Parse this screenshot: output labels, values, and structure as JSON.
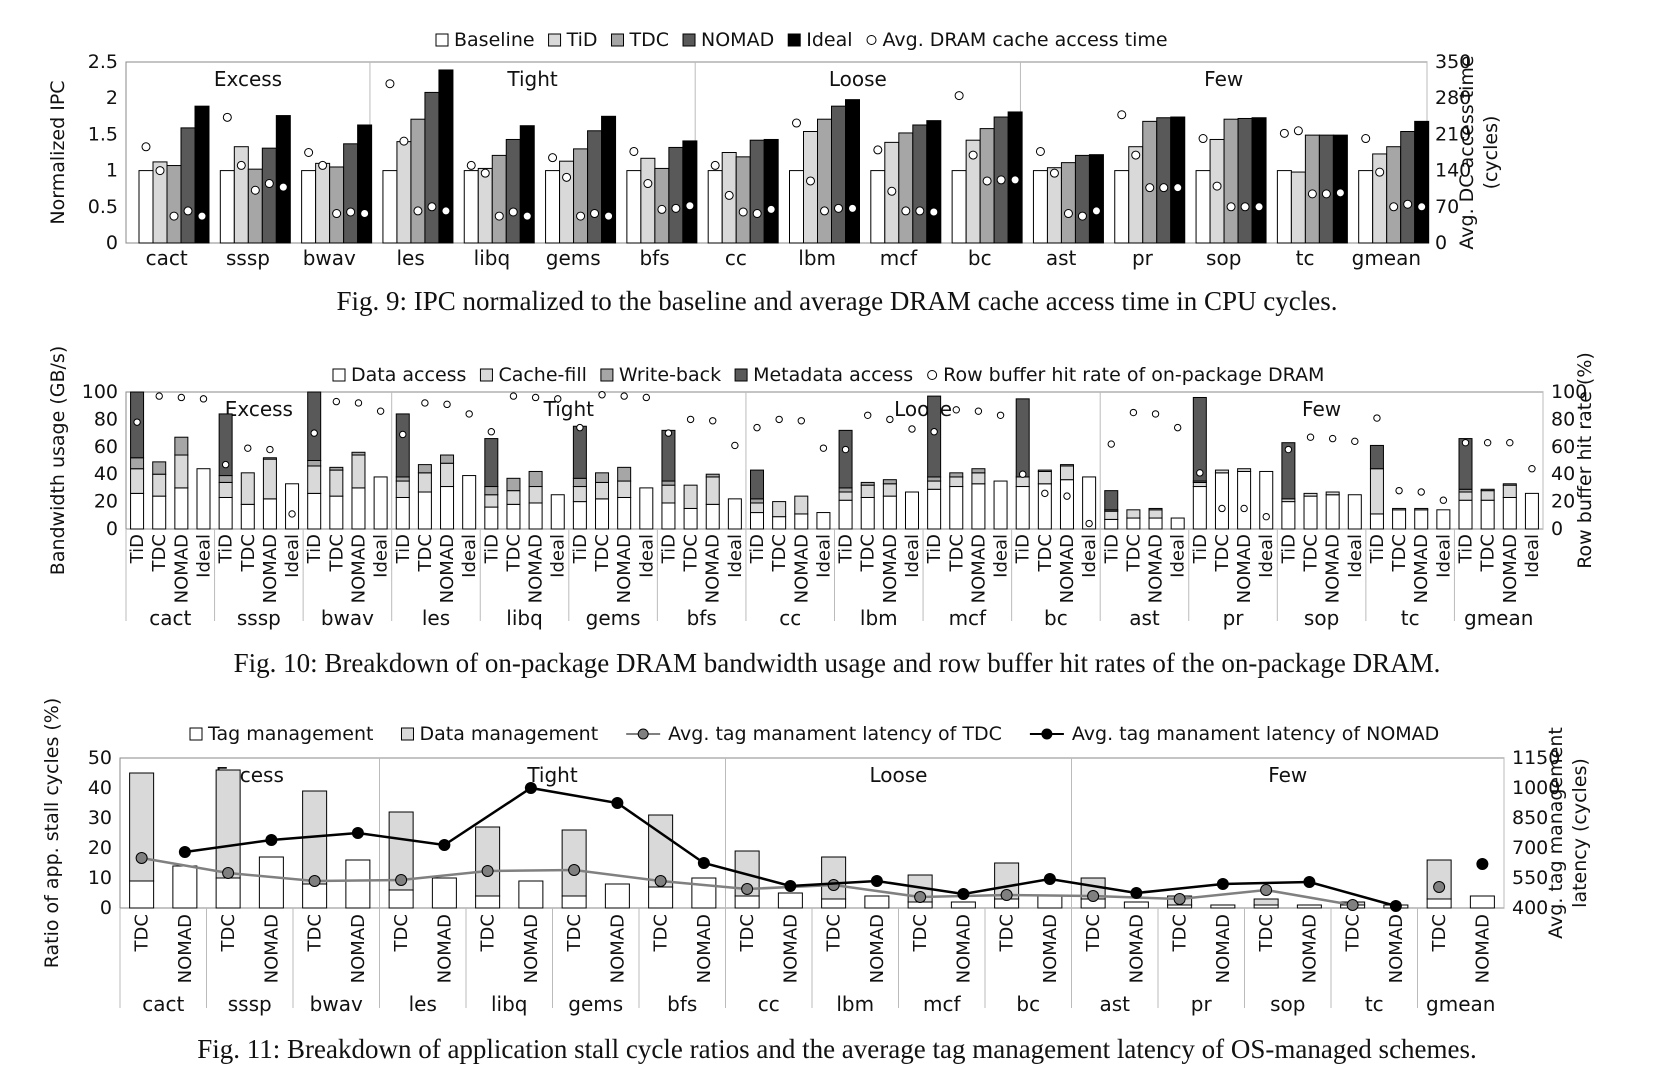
{
  "chart_data": [
    {
      "type": "bar",
      "caption": "Fig. 9: IPC normalized to the baseline and average DRAM cache access time in CPU cycles.",
      "ylabel": "Normalized IPC",
      "y2label_lines": [
        "Avg. DC access time",
        "(cycles)"
      ],
      "ylim": [
        0,
        2.5
      ],
      "yticks": [
        "0",
        "0.5",
        "1",
        "1.5",
        "2",
        "2.5"
      ],
      "y2lim": [
        0,
        350
      ],
      "y2ticks": [
        "0",
        "70",
        "140",
        "210",
        "280",
        "350"
      ],
      "groups": [
        {
          "name": "Excess",
          "count": 3
        },
        {
          "name": "Tight",
          "count": 4
        },
        {
          "name": "Loose",
          "count": 4
        },
        {
          "name": "Few",
          "count": 5
        }
      ],
      "categories": [
        "cact",
        "sssp",
        "bwav",
        "les",
        "libq",
        "gems",
        "bfs",
        "cc",
        "lbm",
        "mcf",
        "bc",
        "ast",
        "pr",
        "sop",
        "tc",
        "gmean"
      ],
      "legend": [
        "Baseline",
        "TiD",
        "TDC",
        "NOMAD",
        "Ideal",
        "Avg. DRAM cache access time"
      ],
      "series_colors": [
        "#ffffff",
        "#d9d9d9",
        "#a6a6a6",
        "#595959",
        "#000000"
      ],
      "series": [
        {
          "name": "Baseline",
          "values": [
            1.0,
            1.0,
            1.0,
            1.0,
            1.0,
            1.0,
            1.0,
            1.0,
            1.0,
            1.0,
            1.0,
            1.0,
            1.0,
            1.0,
            1.0,
            1.0
          ]
        },
        {
          "name": "TiD",
          "values": [
            1.12,
            1.33,
            1.1,
            1.4,
            1.03,
            1.13,
            1.17,
            1.25,
            1.54,
            1.39,
            1.42,
            1.04,
            1.33,
            1.43,
            0.98,
            1.23
          ]
        },
        {
          "name": "TDC",
          "values": [
            1.07,
            1.02,
            1.05,
            1.71,
            1.21,
            1.3,
            1.03,
            1.19,
            1.71,
            1.52,
            1.58,
            1.11,
            1.68,
            1.71,
            1.49,
            1.33
          ]
        },
        {
          "name": "NOMAD",
          "values": [
            1.59,
            1.31,
            1.37,
            2.08,
            1.43,
            1.55,
            1.32,
            1.42,
            1.89,
            1.63,
            1.74,
            1.21,
            1.73,
            1.72,
            1.49,
            1.54
          ]
        },
        {
          "name": "Ideal",
          "values": [
            1.89,
            1.76,
            1.63,
            2.39,
            1.62,
            1.75,
            1.41,
            1.43,
            1.98,
            1.69,
            1.81,
            1.22,
            1.74,
            1.73,
            1.49,
            1.68
          ]
        }
      ],
      "line_series": {
        "name": "Avg. DRAM cache access time",
        "values": [
          [
            186,
            140,
            52,
            62,
            52
          ],
          [
            243,
            150,
            102,
            115,
            108
          ],
          [
            175,
            150,
            57,
            60,
            57
          ],
          [
            308,
            197,
            62,
            70,
            62
          ],
          [
            150,
            135,
            52,
            60,
            52
          ],
          [
            165,
            127,
            52,
            57,
            52
          ],
          [
            177,
            115,
            65,
            67,
            72
          ],
          [
            150,
            92,
            60,
            57,
            65
          ],
          [
            232,
            120,
            62,
            67,
            67
          ],
          [
            180,
            100,
            62,
            62,
            60
          ],
          [
            285,
            170,
            120,
            122,
            122
          ],
          [
            177,
            135,
            57,
            52,
            62
          ],
          [
            248,
            170,
            107,
            107,
            107
          ],
          [
            202,
            110,
            70,
            70,
            70
          ],
          [
            212,
            217,
            95,
            95,
            97
          ],
          [
            202,
            137,
            70,
            75,
            70
          ]
        ]
      }
    },
    {
      "type": "bar",
      "caption": "Fig. 10: Breakdown of on-package DRAM bandwidth usage and row buffer hit rates of the on-package DRAM.",
      "ylabel": "Bandwidth usage (GB/s)",
      "y2label_lines": [
        "Row buffer hit rate (%)"
      ],
      "ylim": [
        0,
        100
      ],
      "yticks": [
        "0",
        "20",
        "40",
        "60",
        "80",
        "100"
      ],
      "y2lim": [
        0,
        100
      ],
      "y2ticks": [
        "0",
        "20",
        "40",
        "60",
        "80",
        "100"
      ],
      "groups": [
        {
          "name": "Excess",
          "count": 3
        },
        {
          "name": "Tight",
          "count": 4
        },
        {
          "name": "Loose",
          "count": 4
        },
        {
          "name": "Few",
          "count": 5
        }
      ],
      "categories": [
        "cact",
        "sssp",
        "bwav",
        "les",
        "libq",
        "gems",
        "bfs",
        "cc",
        "lbm",
        "mcf",
        "bc",
        "ast",
        "pr",
        "sop",
        "tc",
        "gmean"
      ],
      "sub_categories": [
        "TiD",
        "TDC",
        "NOMAD",
        "Ideal"
      ],
      "legend": [
        "Data access",
        "Cache-fill",
        "Write-back",
        "Metadata access",
        "Row buffer hit rate of on-package DRAM"
      ],
      "series_colors": [
        "#ffffff",
        "#d9d9d9",
        "#a6a6a6",
        "#595959"
      ],
      "stacks": [
        [
          [
            26,
            18,
            8,
            48
          ],
          [
            24,
            16,
            9,
            0
          ],
          [
            30,
            24,
            13,
            0
          ],
          [
            44,
            0,
            0,
            0
          ]
        ],
        [
          [
            23,
            11,
            5,
            45
          ],
          [
            18,
            23,
            0,
            0
          ],
          [
            22,
            29,
            1,
            0
          ],
          [
            33,
            0,
            0,
            0
          ]
        ],
        [
          [
            26,
            20,
            4,
            50
          ],
          [
            24,
            19,
            2,
            0
          ],
          [
            30,
            24,
            2,
            0
          ],
          [
            38,
            0,
            0,
            0
          ]
        ],
        [
          [
            23,
            12,
            3,
            46
          ],
          [
            27,
            14,
            6,
            0
          ],
          [
            31,
            17,
            6,
            0
          ],
          [
            39,
            0,
            0,
            0
          ]
        ],
        [
          [
            16,
            9,
            6,
            35
          ],
          [
            18,
            10,
            9,
            0
          ],
          [
            19,
            12,
            11,
            0
          ],
          [
            25,
            0,
            0,
            0
          ]
        ],
        [
          [
            20,
            11,
            6,
            38
          ],
          [
            22,
            12,
            7,
            0
          ],
          [
            23,
            12,
            10,
            0
          ],
          [
            30,
            0,
            0,
            0
          ]
        ],
        [
          [
            19,
            13,
            3,
            37
          ],
          [
            15,
            17,
            0,
            0
          ],
          [
            18,
            20,
            2,
            0
          ],
          [
            22,
            0,
            0,
            0
          ]
        ],
        [
          [
            12,
            7,
            3,
            21
          ],
          [
            9,
            11,
            0,
            0
          ],
          [
            11,
            13,
            0,
            0
          ],
          [
            12,
            0,
            0,
            0
          ]
        ],
        [
          [
            21,
            6,
            3,
            42
          ],
          [
            23,
            9,
            2,
            0
          ],
          [
            24,
            9,
            3,
            0
          ],
          [
            27,
            0,
            0,
            0
          ]
        ],
        [
          [
            29,
            6,
            3,
            59
          ],
          [
            31,
            7,
            3,
            0
          ],
          [
            33,
            8,
            3,
            0
          ],
          [
            35,
            0,
            0,
            0
          ]
        ],
        [
          [
            31,
            7,
            0,
            57
          ],
          [
            33,
            9,
            1,
            0
          ],
          [
            36,
            10,
            1,
            0
          ],
          [
            38,
            0,
            0,
            0
          ]
        ],
        [
          [
            7,
            6,
            1,
            14
          ],
          [
            8,
            6,
            0,
            0
          ],
          [
            8,
            6,
            1,
            0
          ],
          [
            8,
            0,
            0,
            0
          ]
        ],
        [
          [
            31,
            3,
            1,
            61
          ],
          [
            41,
            2,
            0,
            0
          ],
          [
            42,
            2,
            0,
            0
          ],
          [
            42,
            0,
            0,
            0
          ]
        ],
        [
          [
            20,
            2,
            0,
            41
          ],
          [
            24,
            2,
            0,
            0
          ],
          [
            25,
            2,
            0,
            0
          ],
          [
            25,
            0,
            0,
            0
          ]
        ],
        [
          [
            11,
            33,
            0,
            17
          ],
          [
            14,
            1,
            0,
            0
          ],
          [
            14,
            1,
            0,
            0
          ],
          [
            14,
            0,
            0,
            0
          ]
        ],
        [
          [
            21,
            6,
            2,
            37
          ],
          [
            21,
            7,
            1,
            0
          ],
          [
            23,
            9,
            1,
            0
          ],
          [
            26,
            0,
            0,
            0
          ]
        ]
      ],
      "line_series": {
        "name": "Row buffer hit rate of on-package DRAM",
        "values": [
          [
            78,
            97,
            96,
            95
          ],
          [
            47,
            59,
            58,
            11
          ],
          [
            70,
            93,
            92,
            86
          ],
          [
            69,
            92,
            91,
            84
          ],
          [
            71,
            97,
            96,
            95
          ],
          [
            74,
            98,
            97,
            96
          ],
          [
            70,
            80,
            79,
            61
          ],
          [
            74,
            80,
            79,
            59
          ],
          [
            58,
            83,
            80,
            73
          ],
          [
            71,
            87,
            86,
            83
          ],
          [
            40,
            26,
            24,
            4
          ],
          [
            62,
            85,
            84,
            74
          ],
          [
            41,
            15,
            15,
            9
          ],
          [
            58,
            67,
            66,
            64
          ],
          [
            81,
            28,
            27,
            21
          ],
          [
            63,
            63,
            63,
            44
          ]
        ]
      }
    },
    {
      "type": "bar",
      "caption": "Fig. 11: Breakdown of application stall cycle ratios and the average tag management latency of OS-managed schemes.",
      "ylabel": "Ratio of app. stall cycles (%)",
      "y2label_lines": [
        "Avg. tag management",
        "latency (cycles)"
      ],
      "ylim": [
        0,
        50
      ],
      "yticks": [
        "0",
        "10",
        "20",
        "30",
        "40",
        "50"
      ],
      "y2lim": [
        400,
        1150
      ],
      "y2ticks": [
        "400",
        "550",
        "700",
        "850",
        "1000",
        "1150"
      ],
      "groups": [
        {
          "name": "Excess",
          "count": 3
        },
        {
          "name": "Tight",
          "count": 4
        },
        {
          "name": "Loose",
          "count": 4
        },
        {
          "name": "Few",
          "count": 5
        }
      ],
      "categories": [
        "cact",
        "sssp",
        "bwav",
        "les",
        "libq",
        "gems",
        "bfs",
        "cc",
        "lbm",
        "mcf",
        "bc",
        "ast",
        "pr",
        "sop",
        "tc",
        "gmean"
      ],
      "sub_categories": [
        "TDC",
        "NOMAD"
      ],
      "legend": [
        "Tag management",
        "Data management",
        "Avg. tag manament latency of TDC",
        "Avg. tag manament latency of NOMAD"
      ],
      "series_colors": [
        "#ffffff",
        "#d9d9d9",
        "#808080",
        "#000000"
      ],
      "stacks": [
        [
          [
            9,
            36
          ],
          [
            14,
            0
          ]
        ],
        [
          [
            10,
            36
          ],
          [
            17,
            0
          ]
        ],
        [
          [
            8,
            31
          ],
          [
            16,
            0
          ]
        ],
        [
          [
            6,
            26
          ],
          [
            10,
            0
          ]
        ],
        [
          [
            4,
            23
          ],
          [
            9,
            0
          ]
        ],
        [
          [
            4,
            22
          ],
          [
            8,
            0
          ]
        ],
        [
          [
            7,
            24
          ],
          [
            10,
            0
          ]
        ],
        [
          [
            4,
            15
          ],
          [
            5,
            0
          ]
        ],
        [
          [
            3,
            14
          ],
          [
            4,
            0
          ]
        ],
        [
          [
            2,
            9
          ],
          [
            2,
            0
          ]
        ],
        [
          [
            3,
            12
          ],
          [
            4,
            0
          ]
        ],
        [
          [
            3,
            7
          ],
          [
            2,
            0
          ]
        ],
        [
          [
            1,
            3
          ],
          [
            1,
            0
          ]
        ],
        [
          [
            1,
            2
          ],
          [
            1,
            0
          ]
        ],
        [
          [
            1,
            1
          ],
          [
            1,
            0
          ]
        ],
        [
          [
            3,
            13
          ],
          [
            4,
            0
          ]
        ]
      ],
      "line_series": [
        {
          "name": "Avg. tag manament latency of TDC",
          "values": [
            650,
            575,
            535,
            540,
            585,
            590,
            535,
            495,
            515,
            455,
            465,
            460,
            445,
            490,
            415,
            505
          ]
        },
        {
          "name": "Avg. tag manament latency of NOMAD",
          "values": [
            680,
            740,
            775,
            715,
            1000,
            925,
            625,
            510,
            535,
            470,
            545,
            475,
            520,
            530,
            410,
            620
          ]
        }
      ]
    }
  ]
}
